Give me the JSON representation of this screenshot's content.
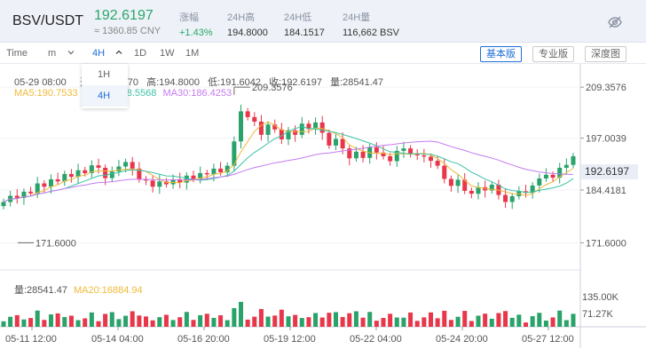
{
  "header": {
    "pair": "BSV/USDT",
    "price": "192.6197",
    "cny": "≈ 1360.85 CNY",
    "stats": [
      {
        "label": "涨幅",
        "value": "+1.43%",
        "up": true
      },
      {
        "label": "24H高",
        "value": "194.8000"
      },
      {
        "label": "24H低",
        "value": "184.1517"
      },
      {
        "label": "24H量",
        "value": "116,662 BSV"
      }
    ]
  },
  "toolbar": {
    "time": "Time",
    "minute": "m",
    "selected_interval": "4H",
    "intervals": [
      "1D",
      "1W",
      "1M"
    ],
    "versions": [
      "基本版",
      "专业版",
      "深度图"
    ]
  },
  "dropdown": {
    "options": [
      "1H",
      "4H"
    ]
  },
  "info": {
    "date": "05-29 08:00",
    "open_frag": "开",
    "open_tail": "70",
    "high": "高:194.8000",
    "low": "低:191.6042",
    "close": "收:192.6197",
    "vol": "量:28541.47"
  },
  "ma": {
    "ma5": "MA5:190.7533",
    "ma10": "88.5568",
    "ma30": "MA30:186.4253"
  },
  "volume_legend": {
    "vol": "量:28541.47",
    "ma20": "MA20:16884.94"
  },
  "current_price": "192.6197",
  "colors": {
    "up": "#29a369",
    "down": "#e8364a",
    "accent": "#1f6fd8",
    "ma5": "#f0b93a",
    "ma10": "#3cc3a8",
    "ma30": "#c47bf0"
  },
  "chart_data": {
    "type": "candlestick",
    "price_axis": {
      "ticks": [
        "209.3576",
        "197.0039",
        "184.4181",
        "171.6000"
      ],
      "range": [
        165,
        215
      ]
    },
    "volume_axis": {
      "ticks": [
        "135.00K",
        "71.27K"
      ]
    },
    "x_ticks": [
      "05-11 12:00",
      "05-14 04:00",
      "05-16 20:00",
      "05-19 12:00",
      "05-22 04:00",
      "05-24 20:00",
      "05-27 12:00"
    ],
    "annotations": {
      "high": "209.3576",
      "low": "171.6000"
    },
    "series": {
      "close": [
        181.5,
        183,
        182.5,
        184,
        183.6,
        186,
        185.2,
        187,
        186.5,
        188.3,
        187.6,
        189.2,
        188.5,
        190.4,
        189.8,
        187.3,
        188.9,
        190.1,
        191.2,
        189.6,
        187,
        186.7,
        185.2,
        186.5,
        185.8,
        187,
        186.2,
        187.9,
        187.1,
        188.5,
        188.2,
        189.6,
        188.7,
        190.3,
        196.2,
        203.5,
        202.1,
        201,
        197.8,
        200.3,
        199.1,
        196.7,
        198.9,
        197.8,
        200.5,
        199.2,
        200.8,
        198.3,
        195.2,
        196.8,
        194.5,
        192.1,
        193.7,
        192.2,
        194.8,
        193.5,
        192.6,
        191.4,
        193.9,
        194.5,
        193.1,
        192.8,
        192.5,
        191.5,
        190.3,
        187.1,
        185.4,
        186.9,
        184.2,
        183.5,
        185.1,
        184.3,
        185.7,
        183.2,
        181.5,
        182.9,
        184.1,
        183.7,
        185.5,
        187.2,
        188.1,
        187.4,
        189.8,
        190.5,
        192.6
      ]
    },
    "volume_peak": 135000
  }
}
